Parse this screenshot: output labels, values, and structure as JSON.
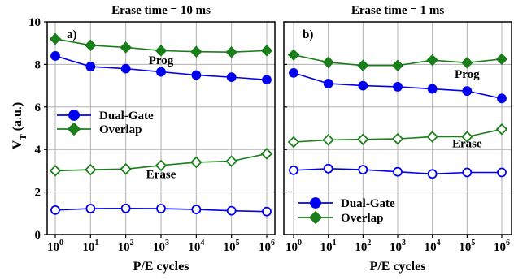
{
  "chart_data": [
    {
      "type": "line",
      "title": "Erase time = 10 ms",
      "panel_label": "a)",
      "xlabel": "P/E cycles",
      "ylabel": "V",
      "ylabel_subscript": "T",
      "ylabel_suffix": " (a.u.)",
      "x_ticks": [
        {
          "base": "10",
          "exp": "0"
        },
        {
          "base": "10",
          "exp": "1"
        },
        {
          "base": "10",
          "exp": "2"
        },
        {
          "base": "10",
          "exp": "3"
        },
        {
          "base": "10",
          "exp": "4"
        },
        {
          "base": "10",
          "exp": "5"
        },
        {
          "base": "10",
          "exp": "6"
        }
      ],
      "x": [
        1,
        10,
        100,
        1000,
        10000,
        100000,
        1000000
      ],
      "x_scale": "log",
      "y_ticks": [
        "0",
        "2",
        "4",
        "6",
        "8",
        "10"
      ],
      "ylim": [
        0,
        10
      ],
      "grid": true,
      "legend_position": "middle-left",
      "series": [
        {
          "name": "Dual-Gate",
          "state": "prog",
          "color": "#0000ee",
          "marker": "circle-filled",
          "values": [
            8.4,
            7.9,
            7.8,
            7.65,
            7.5,
            7.4,
            7.28
          ]
        },
        {
          "name": "Overlap",
          "state": "prog",
          "color": "#1a7f1a",
          "marker": "diamond-filled",
          "values": [
            9.2,
            8.9,
            8.8,
            8.65,
            8.6,
            8.58,
            8.65
          ]
        },
        {
          "state": "erase",
          "color": "#0000ee",
          "marker": "circle-open",
          "values": [
            1.15,
            1.22,
            1.23,
            1.22,
            1.18,
            1.12,
            1.08
          ]
        },
        {
          "state": "erase",
          "color": "#1a7f1a",
          "marker": "diamond-open",
          "values": [
            3.0,
            3.05,
            3.08,
            3.25,
            3.4,
            3.45,
            3.8
          ]
        }
      ],
      "annotations": [
        {
          "text": "Prog",
          "x": 1000,
          "y": 8.2
        },
        {
          "text": "Erase",
          "x": 1000,
          "y": 2.85
        }
      ]
    },
    {
      "type": "line",
      "title": "Erase time = 1 ms",
      "panel_label": "b)",
      "xlabel": "P/E cycles",
      "x_ticks": [
        {
          "base": "10",
          "exp": "0"
        },
        {
          "base": "10",
          "exp": "1"
        },
        {
          "base": "10",
          "exp": "2"
        },
        {
          "base": "10",
          "exp": "3"
        },
        {
          "base": "10",
          "exp": "4"
        },
        {
          "base": "10",
          "exp": "5"
        },
        {
          "base": "10",
          "exp": "6"
        }
      ],
      "x": [
        1,
        10,
        100,
        1000,
        10000,
        100000,
        1000000
      ],
      "x_scale": "log",
      "ylim": [
        0,
        10
      ],
      "grid": true,
      "legend_position": "bottom-left",
      "series": [
        {
          "name": "Dual-Gate",
          "state": "prog",
          "color": "#0000ee",
          "marker": "circle-filled",
          "values": [
            7.6,
            7.1,
            7.0,
            6.95,
            6.85,
            6.75,
            6.4
          ]
        },
        {
          "name": "Overlap",
          "state": "prog",
          "color": "#1a7f1a",
          "marker": "diamond-filled",
          "values": [
            8.45,
            8.1,
            7.95,
            7.95,
            8.2,
            8.08,
            8.25
          ]
        },
        {
          "state": "erase",
          "color": "#0000ee",
          "marker": "circle-open",
          "values": [
            3.02,
            3.1,
            3.05,
            2.95,
            2.85,
            2.92,
            2.92
          ]
        },
        {
          "state": "erase",
          "color": "#1a7f1a",
          "marker": "diamond-open",
          "values": [
            4.35,
            4.45,
            4.48,
            4.5,
            4.6,
            4.6,
            4.95
          ]
        }
      ],
      "annotations": [
        {
          "text": "Prog",
          "x": 100000,
          "y": 7.55
        },
        {
          "text": "Erase",
          "x": 100000,
          "y": 4.3
        }
      ]
    }
  ]
}
